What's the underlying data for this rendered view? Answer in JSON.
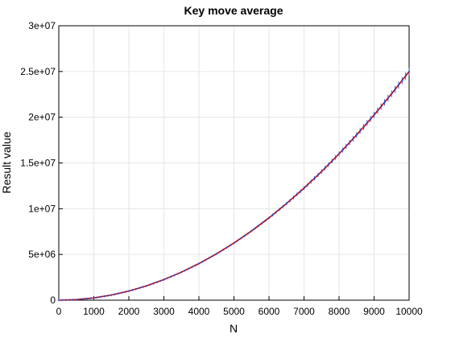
{
  "chart_data": {
    "type": "scatter",
    "title": "Key move average",
    "xlabel": "N",
    "ylabel": "Result value",
    "xlim": [
      0,
      10000
    ],
    "ylim": [
      0,
      30000000
    ],
    "x_ticks": [
      0,
      1000,
      2000,
      3000,
      4000,
      5000,
      6000,
      7000,
      8000,
      9000,
      10000
    ],
    "x_tick_labels": [
      "0",
      "1000",
      "2000",
      "3000",
      "4000",
      "5000",
      "6000",
      "7000",
      "8000",
      "9000",
      "10000"
    ],
    "y_ticks": [
      0,
      5000000,
      10000000,
      15000000,
      20000000,
      25000000,
      30000000
    ],
    "y_tick_labels": [
      "0",
      "5e+06",
      "1e+07",
      "1.5e+07",
      "2e+07",
      "2.5e+07",
      "3e+07"
    ],
    "grid": true,
    "legend": "none",
    "series": [
      {
        "color": "#cc0000",
        "style": "line",
        "x": [
          0,
          500,
          1000,
          1500,
          2000,
          2500,
          3000,
          3500,
          4000,
          4500,
          5000,
          5500,
          6000,
          6500,
          7000,
          7500,
          8000,
          8500,
          9000,
          9500,
          10000
        ],
        "y": [
          0,
          62500,
          250000,
          562500,
          1000000,
          1562500,
          2250000,
          3062500,
          4000000,
          5062500,
          6250000,
          7562500,
          9000000,
          10562500,
          12250000,
          14062500,
          16000000,
          18062500,
          20250000,
          22562500,
          25000000
        ]
      },
      {
        "color": "#1f4fd6",
        "style": "error-markers",
        "x": [
          0,
          100,
          200,
          300,
          400,
          500,
          600,
          700,
          800,
          900,
          1000,
          1100,
          1200,
          1300,
          1400,
          1500,
          1600,
          1700,
          1800,
          1900,
          2000,
          2100,
          2200,
          2300,
          2400,
          2500,
          2600,
          2700,
          2800,
          2900,
          3000,
          3100,
          3200,
          3300,
          3400,
          3500,
          3600,
          3700,
          3800,
          3900,
          4000,
          4100,
          4200,
          4300,
          4400,
          4500,
          4600,
          4700,
          4800,
          4900,
          5000,
          5100,
          5200,
          5300,
          5400,
          5500,
          5600,
          5700,
          5800,
          5900,
          6000,
          6100,
          6200,
          6300,
          6400,
          6500,
          6600,
          6700,
          6800,
          6900,
          7000,
          7100,
          7200,
          7300,
          7400,
          7500,
          7600,
          7700,
          7800,
          7900,
          8000,
          8100,
          8200,
          8300,
          8400,
          8500,
          8600,
          8700,
          8800,
          8900,
          9000,
          9100,
          9200,
          9300,
          9400,
          9500,
          9600,
          9700,
          9800,
          9900,
          10000
        ],
        "y": [
          0,
          2500,
          10000,
          22500,
          40000,
          62500,
          90000,
          122500,
          160000,
          202500,
          250000,
          302500,
          360000,
          422500,
          490000,
          562500,
          640000,
          722500,
          810000,
          902500,
          1000000,
          1102500,
          1210000,
          1322500,
          1440000,
          1562500,
          1690000,
          1822500,
          1960000,
          2102500,
          2250000,
          2402500,
          2560000,
          2722500,
          2890000,
          3062500,
          3240000,
          3422500,
          3610000,
          3802500,
          4000000,
          4202500,
          4410000,
          4622500,
          4840000,
          5062500,
          5290000,
          5522500,
          5760000,
          6002500,
          6250000,
          6502500,
          6760000,
          7022500,
          7290000,
          7562500,
          7840000,
          8122500,
          8410000,
          8702500,
          9000000,
          9302500,
          9610000,
          9922500,
          10240000,
          10562500,
          10890000,
          11222500,
          11560000,
          11902500,
          12250000,
          12602500,
          12960000,
          13322500,
          13690000,
          14062500,
          14440000,
          14822500,
          15210000,
          15602500,
          16000000,
          16402500,
          16810000,
          17222500,
          17640000,
          18062500,
          18490000,
          18922500,
          19360000,
          19802500,
          20250000,
          20702500,
          21160000,
          21622500,
          22090000,
          22562500,
          23040000,
          23522500,
          24010000,
          24502500,
          25000000
        ],
        "err": [
          0,
          200,
          400,
          600,
          800,
          1200,
          1500,
          2000,
          2500,
          3000,
          4000,
          4500,
          5000,
          6000,
          7000,
          8000,
          9000,
          10000,
          11000,
          12000,
          14000,
          15000,
          16000,
          18000,
          20000,
          22000,
          24000,
          26000,
          28000,
          30000,
          32000,
          34000,
          36000,
          38000,
          40000,
          45000,
          48000,
          50000,
          55000,
          58000,
          60000,
          65000,
          70000,
          72000,
          75000,
          80000,
          85000,
          90000,
          95000,
          100000,
          105000,
          110000,
          115000,
          120000,
          125000,
          130000,
          135000,
          140000,
          145000,
          150000,
          155000,
          160000,
          165000,
          170000,
          175000,
          180000,
          185000,
          190000,
          195000,
          200000,
          210000,
          215000,
          220000,
          225000,
          230000,
          240000,
          245000,
          250000,
          255000,
          260000,
          270000,
          275000,
          280000,
          290000,
          295000,
          300000,
          310000,
          315000,
          320000,
          330000,
          335000,
          340000,
          350000,
          355000,
          360000,
          370000,
          375000,
          380000,
          390000,
          395000,
          400000
        ]
      }
    ]
  }
}
